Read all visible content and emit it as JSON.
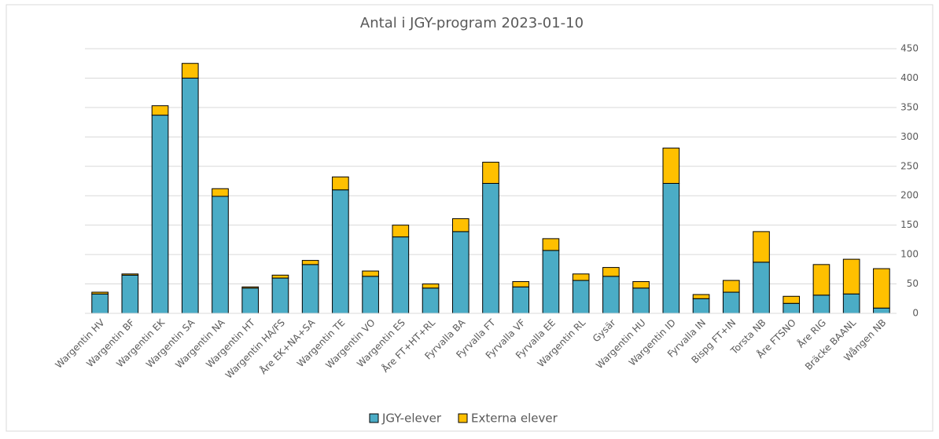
{
  "chart_data": {
    "type": "stacked_bar",
    "title": "Antal i JGY-program 2023-01-10",
    "categories": [
      "Wargentin HV",
      "Wargentin BF",
      "Wargentin EK",
      "Wargentin SA",
      "Wargentin NA",
      "Wargentin HT",
      "Wargentin HA/FS",
      "Åre EK+NA+SA",
      "Wargentin TE",
      "Wargentin VO",
      "Wargentin ES",
      "Åre FT+HT+RL",
      "Fyrvalla BA",
      "Fyrvalla FT",
      "Fyrvalla VF",
      "Fyrvalla EE",
      "Wargentin RL",
      "Gysär",
      "Wargentin HU",
      "Wargentin ID",
      "Fyrvalla IN",
      "Bispg FT+IN",
      "Torsta NB",
      "Åre FTSNO",
      "Åre RIG",
      "Bräcke BAANL",
      "Wången NB"
    ],
    "series": [
      {
        "name": "JGY-elever",
        "color": "#4bacc6",
        "values": [
          33,
          65,
          337,
          400,
          199,
          43,
          60,
          83,
          210,
          63,
          130,
          43,
          139,
          221,
          45,
          107,
          56,
          63,
          43,
          221,
          25,
          36,
          87,
          17,
          31,
          33,
          9
        ]
      },
      {
        "name": "Externa elever",
        "color": "#ffc000",
        "values": [
          3,
          2,
          16,
          25,
          13,
          2,
          5,
          7,
          22,
          9,
          20,
          7,
          22,
          36,
          9,
          20,
          11,
          15,
          11,
          60,
          7,
          20,
          52,
          12,
          52,
          59,
          67
        ]
      }
    ],
    "ylim": [
      0,
      450
    ],
    "yticks": [
      0,
      50,
      100,
      150,
      200,
      250,
      300,
      350,
      400,
      450
    ],
    "grid": true,
    "legend": "bottom"
  }
}
